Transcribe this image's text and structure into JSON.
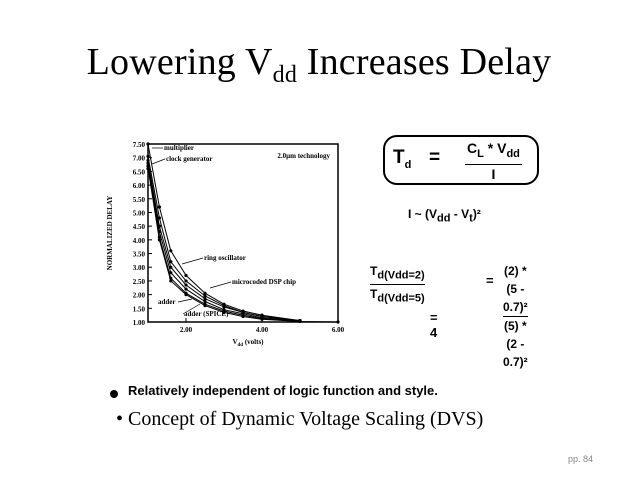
{
  "title": {
    "main": "Lowering V",
    "sub": "dd",
    "rest": " Increases Delay"
  },
  "formulas": {
    "td_symbol": "T",
    "td_sub": "d",
    "equals": "=",
    "numerator": "C",
    "num_sub1": "L",
    "num_mid": " * V",
    "num_sub2": "dd",
    "denominator": "I",
    "current": "I ~ (V",
    "current_sub": "dd",
    "current_mid": " - V",
    "current_sub2": "t",
    "current_end": ")²",
    "ratio_num": "T",
    "ratio_num_sub": "d(Vdd=2)",
    "ratio_den": "T",
    "ratio_den_sub": "d(Vdd=5)",
    "ratio_eq": "=",
    "ratio_rhs_num": "(2) * (5 - 0.7)²",
    "ratio_rhs_den": "(5) * (2 - 0.7)²",
    "result": "=   4"
  },
  "bullets": {
    "first": "Relatively independent of logic function and style.",
    "second": "• Concept of Dynamic Voltage Scaling (DVS)"
  },
  "page_number": "pp. 84",
  "chart_data": {
    "type": "line",
    "title": "",
    "annotation": "2.0µm technology",
    "xlabel_main": "V",
    "xlabel_sub": "dd",
    "xlabel_unit": " (volts)",
    "ylabel": "NORMALIZED DELAY",
    "xlim": [
      1.0,
      6.0
    ],
    "ylim": [
      1.0,
      7.5
    ],
    "x_ticks": [
      "2.00",
      "4.00",
      "6.00"
    ],
    "x_tick_values": [
      2.0,
      4.0,
      6.0
    ],
    "y_ticks": [
      "1.00",
      "1.50",
      "2.00",
      "2.50",
      "3.00",
      "3.50",
      "4.00",
      "4.50",
      "5.00",
      "5.50",
      "6.00",
      "6.50",
      "7.00",
      "7.50"
    ],
    "series": [
      {
        "name": "multiplier",
        "x": [
          1.0,
          1.3,
          1.6,
          2.0,
          2.5,
          3.0,
          3.5,
          4.0,
          5.0
        ],
        "y": [
          7.5,
          5.2,
          3.6,
          2.7,
          2.05,
          1.65,
          1.4,
          1.25,
          1.05
        ]
      },
      {
        "name": "clock generator",
        "x": [
          1.0,
          1.3,
          1.6,
          2.0,
          2.5,
          3.0,
          3.5,
          4.0,
          5.0
        ],
        "y": [
          7.05,
          4.8,
          3.2,
          2.5,
          1.95,
          1.6,
          1.35,
          1.2,
          1.05
        ]
      },
      {
        "name": "ring oscillator",
        "x": [
          1.0,
          1.3,
          1.6,
          2.0,
          2.5,
          3.0,
          3.5,
          4.0,
          5.0
        ],
        "y": [
          6.9,
          4.5,
          3.0,
          2.35,
          1.85,
          1.55,
          1.35,
          1.2,
          1.05
        ]
      },
      {
        "name": "microcoded DSP chip",
        "x": [
          1.0,
          1.3,
          1.6,
          2.0,
          2.5,
          3.0,
          3.5,
          4.0,
          5.0
        ],
        "y": [
          6.8,
          4.3,
          2.8,
          2.2,
          1.75,
          1.45,
          1.3,
          1.15,
          1.05
        ]
      },
      {
        "name": "adder",
        "x": [
          1.0,
          1.3,
          1.6,
          2.0,
          2.5,
          3.0,
          3.5,
          4.0,
          5.0
        ],
        "y": [
          6.7,
          4.1,
          2.6,
          2.05,
          1.65,
          1.4,
          1.25,
          1.12,
          1.03
        ]
      },
      {
        "name": "adder (SPICE)",
        "x": [
          1.0,
          1.3,
          1.6,
          2.0,
          2.5,
          3.0,
          3.5,
          4.0,
          5.0,
          6.0
        ],
        "y": [
          6.6,
          4.0,
          2.5,
          2.0,
          1.6,
          1.35,
          1.2,
          1.1,
          1.02,
          1.0
        ]
      }
    ],
    "labels": [
      {
        "text": "multiplier",
        "series": 0
      },
      {
        "text": "clock generator",
        "series": 1
      },
      {
        "text": "ring oscillator",
        "series": 2
      },
      {
        "text": "microcoded DSP chip",
        "series": 3
      },
      {
        "text": "adder",
        "series": 4
      },
      {
        "text": "adder (SPICE)",
        "series": 5
      }
    ]
  }
}
